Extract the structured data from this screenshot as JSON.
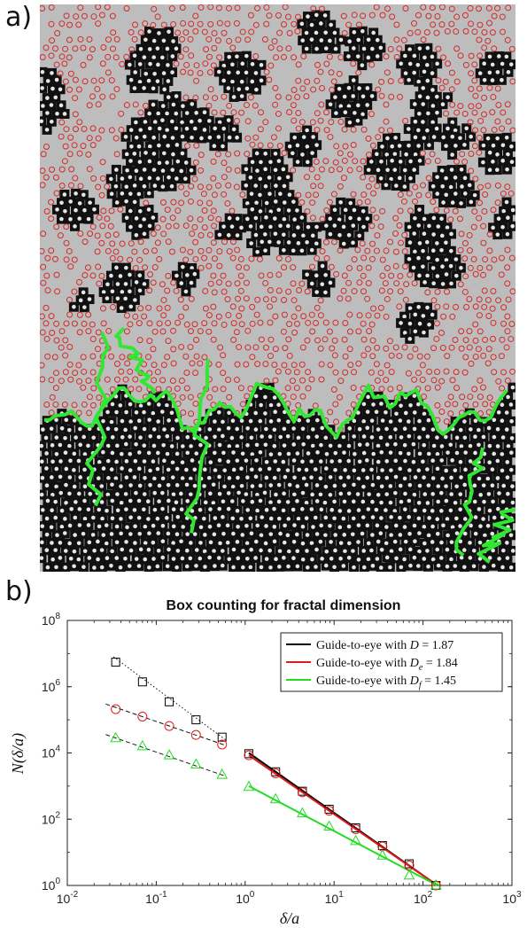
{
  "panels": {
    "a_label": "a)",
    "b_label": "b)"
  },
  "micrograph": {
    "background_color": "#bdbdbd",
    "particle_color": "#111111",
    "bond_color": "#d42a2a",
    "boundary_color": "#33e633"
  },
  "chart_data": {
    "type": "scatter",
    "title": "Box counting for fractal dimension",
    "xlabel": "δ/a",
    "ylabel": "N(δ/a)",
    "xscale": "log",
    "yscale": "log",
    "xlim": [
      0.01,
      1000
    ],
    "ylim": [
      1,
      100000000
    ],
    "x_ticks": [
      {
        "value": 0.01,
        "base": "10",
        "exp": "-2"
      },
      {
        "value": 0.1,
        "base": "10",
        "exp": "-1"
      },
      {
        "value": 1,
        "base": "10",
        "exp": "0"
      },
      {
        "value": 10,
        "base": "10",
        "exp": "1"
      },
      {
        "value": 100,
        "base": "10",
        "exp": "2"
      },
      {
        "value": 1000,
        "base": "10",
        "exp": "3"
      }
    ],
    "y_ticks": [
      {
        "value": 1,
        "base": "10",
        "exp": "0"
      },
      {
        "value": 100,
        "base": "10",
        "exp": "2"
      },
      {
        "value": 10000,
        "base": "10",
        "exp": "4"
      },
      {
        "value": 1000000,
        "base": "10",
        "exp": "6"
      },
      {
        "value": 100000000,
        "base": "10",
        "exp": "8"
      }
    ],
    "grid": false,
    "legend_position": "top-right",
    "series": [
      {
        "name": "Guide-to-eye with D = 1.87",
        "legend_parts": [
          "Guide-to-eye with ",
          "D",
          "",
          " = 1.87"
        ],
        "color": "#000000",
        "marker": "square",
        "x": [
          0.035,
          0.07,
          0.14,
          0.28,
          0.55,
          1.1,
          2.2,
          4.4,
          8.8,
          17.5,
          35,
          70,
          140
        ],
        "y": [
          5500000,
          1400000,
          350000,
          100000,
          30000,
          9500,
          2700,
          700,
          200,
          55,
          16,
          4.5,
          1
        ]
      },
      {
        "name": "Guide-to-eye with D_e = 1.84",
        "legend_parts": [
          "Guide-to-eye with ",
          "D",
          "e",
          " = 1.84"
        ],
        "color": "#e01b1b",
        "marker": "circle",
        "x": [
          0.035,
          0.07,
          0.14,
          0.28,
          0.55,
          1.1,
          2.2,
          4.4,
          8.8,
          17.5,
          35,
          70,
          140
        ],
        "y": [
          210000,
          125000,
          65000,
          35000,
          18000,
          8500,
          2400,
          650,
          180,
          50,
          15,
          4,
          1
        ]
      },
      {
        "name": "Guide-to-eye with D_f = 1.45",
        "legend_parts": [
          "Guide-to-eye with ",
          "D",
          "f",
          " = 1.45"
        ],
        "color": "#22dd22",
        "marker": "triangle",
        "x": [
          0.035,
          0.07,
          0.14,
          0.28,
          0.55,
          1.1,
          2.2,
          4.4,
          8.8,
          17.5,
          35,
          70,
          140
        ],
        "y": [
          28000,
          16000,
          8500,
          4500,
          2200,
          950,
          400,
          150,
          60,
          22,
          8,
          2,
          1
        ]
      }
    ],
    "guide_lines": [
      {
        "series": 0,
        "style": "dotted",
        "x": [
          0.033,
          0.6
        ],
        "y": [
          8000000,
          25000
        ]
      },
      {
        "series": 1,
        "style": "dashed",
        "x": [
          0.027,
          0.6
        ],
        "y": [
          300000,
          17000
        ]
      },
      {
        "series": 2,
        "style": "dashed",
        "x": [
          0.027,
          0.6
        ],
        "y": [
          36000,
          2000
        ]
      },
      {
        "series": 0,
        "style": "solid",
        "x": [
          1.1,
          145
        ],
        "y": [
          10000,
          1
        ]
      },
      {
        "series": 1,
        "style": "solid",
        "x": [
          1.1,
          145
        ],
        "y": [
          8500,
          1
        ]
      },
      {
        "series": 2,
        "style": "solid",
        "x": [
          1.1,
          145
        ],
        "y": [
          1000,
          1
        ]
      }
    ]
  }
}
